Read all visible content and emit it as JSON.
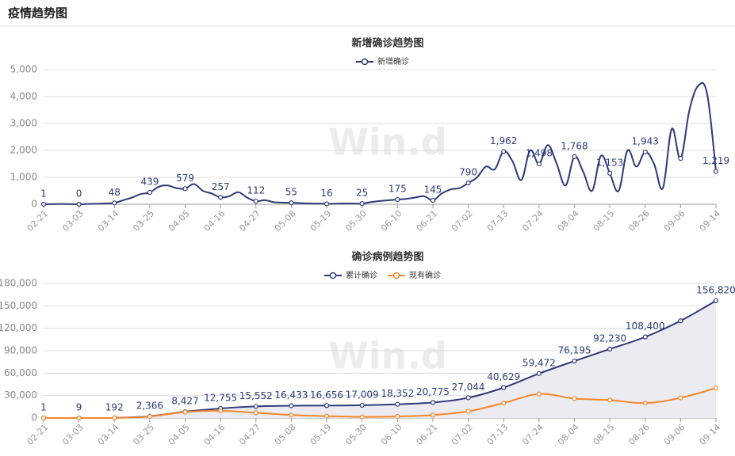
{
  "header": {
    "title": "疫情趋势图"
  },
  "chart_data": [
    {
      "type": "line",
      "title": "新增确诊趋势图",
      "watermark": "Win.d",
      "grid": true,
      "legend": "top",
      "categories": [
        "02-21",
        null,
        null,
        null,
        "03-03",
        null,
        null,
        null,
        "03-14",
        null,
        null,
        null,
        "03-25",
        null,
        null,
        null,
        "04-05",
        null,
        null,
        null,
        "04-16",
        null,
        null,
        null,
        "04-27",
        null,
        null,
        null,
        "05-08",
        null,
        null,
        null,
        "05-19",
        null,
        null,
        null,
        "05-30",
        null,
        null,
        null,
        "06-10",
        null,
        null,
        null,
        "06-21",
        null,
        null,
        null,
        "07-02",
        null,
        null,
        null,
        "07-13",
        null,
        null,
        null,
        "07-24",
        null,
        null,
        null,
        "08-04",
        null,
        null,
        null,
        "08-15",
        null,
        null,
        null,
        "08-26",
        null,
        null,
        null,
        "09-06",
        null,
        null,
        null,
        "09-14"
      ],
      "series": [
        {
          "name": "新增确诊",
          "color": "#2e3a78",
          "values": [
            1,
            5,
            10,
            5,
            0,
            10,
            20,
            30,
            48,
            150,
            250,
            380,
            439,
            650,
            700,
            600,
            579,
            750,
            500,
            400,
            257,
            300,
            450,
            250,
            112,
            150,
            80,
            60,
            55,
            40,
            30,
            25,
            16,
            20,
            30,
            25,
            25,
            80,
            120,
            150,
            175,
            200,
            250,
            300,
            145,
            400,
            550,
            600,
            790,
            1000,
            1400,
            1300,
            1962,
            1600,
            900,
            2000,
            1498,
            2200,
            1500,
            700,
            1768,
            1200,
            500,
            1800,
            1153,
            500,
            2000,
            1400,
            1943,
            1500,
            600,
            2800,
            1700,
            3500,
            4400,
            4100,
            1219
          ],
          "value_labels": [
            "1",
            null,
            null,
            null,
            "0",
            null,
            null,
            null,
            "48",
            null,
            null,
            null,
            "439",
            null,
            null,
            null,
            "579",
            null,
            null,
            null,
            "257",
            null,
            null,
            null,
            "112",
            null,
            null,
            null,
            "55",
            null,
            null,
            null,
            "16",
            null,
            null,
            null,
            "25",
            null,
            null,
            null,
            "175",
            null,
            null,
            null,
            "145",
            null,
            null,
            null,
            "790",
            null,
            null,
            null,
            "1,962",
            null,
            null,
            null,
            "1,498",
            null,
            null,
            null,
            "1,768",
            null,
            null,
            null,
            "1,153",
            null,
            null,
            null,
            "1,943",
            null,
            null,
            null,
            null,
            null,
            null,
            null,
            "1,219"
          ]
        }
      ],
      "ylim": [
        0,
        5000
      ],
      "yticks": [
        0,
        {
          "value": 1000,
          "label": "1,000"
        },
        {
          "value": 2000,
          "label": "2,000"
        },
        {
          "value": 3000,
          "label": "3,000"
        },
        {
          "value": 4000,
          "label": "4,000"
        },
        {
          "value": 5000,
          "label": "5,000"
        }
      ]
    },
    {
      "type": "line",
      "title": "确诊病例趋势图",
      "watermark": "Win.d",
      "grid": true,
      "legend": "top",
      "categories": [
        "02-21",
        "03-03",
        "03-14",
        "03-25",
        "04-05",
        "04-16",
        "04-27",
        "05-08",
        "05-19",
        "05-30",
        "06-10",
        "06-21",
        "07-02",
        "07-13",
        "07-24",
        "08-04",
        "08-15",
        "08-26",
        "09-06",
        "09-14"
      ],
      "series": [
        {
          "name": "累计确诊",
          "color": "#2e3a78",
          "area": true,
          "area_color": "#ebebf1",
          "values": [
            1,
            9,
            192,
            2366,
            8427,
            12755,
            15552,
            16433,
            16656,
            17009,
            18352,
            20775,
            27044,
            40629,
            59472,
            76195,
            92230,
            108400,
            130000,
            156820
          ],
          "value_labels": [
            "1",
            "9",
            "192",
            "2,366",
            "8,427",
            "12,755",
            "15,552",
            "16,433",
            "16,656",
            "17,009",
            "18,352",
            "20,775",
            "27,044",
            "40,629",
            "59,472",
            "76,195",
            "92,230",
            "108,400",
            null,
            "156,820"
          ]
        },
        {
          "name": "现有确诊",
          "color": "#f5862a",
          "values": [
            1,
            9,
            150,
            2000,
            8000,
            9500,
            7000,
            4000,
            2500,
            1500,
            2000,
            4000,
            9000,
            20000,
            32000,
            26000,
            24000,
            20000,
            27000,
            40000
          ]
        }
      ],
      "ylim": [
        0,
        180000
      ],
      "yticks": [
        0,
        {
          "value": 30000,
          "label": "30,000"
        },
        {
          "value": 60000,
          "label": "60,000"
        },
        {
          "value": 90000,
          "label": "90,000"
        },
        {
          "value": 120000,
          "label": "120,000"
        },
        {
          "value": 150000,
          "label": "150,000"
        },
        {
          "value": 180000,
          "label": "180,000"
        }
      ]
    }
  ]
}
